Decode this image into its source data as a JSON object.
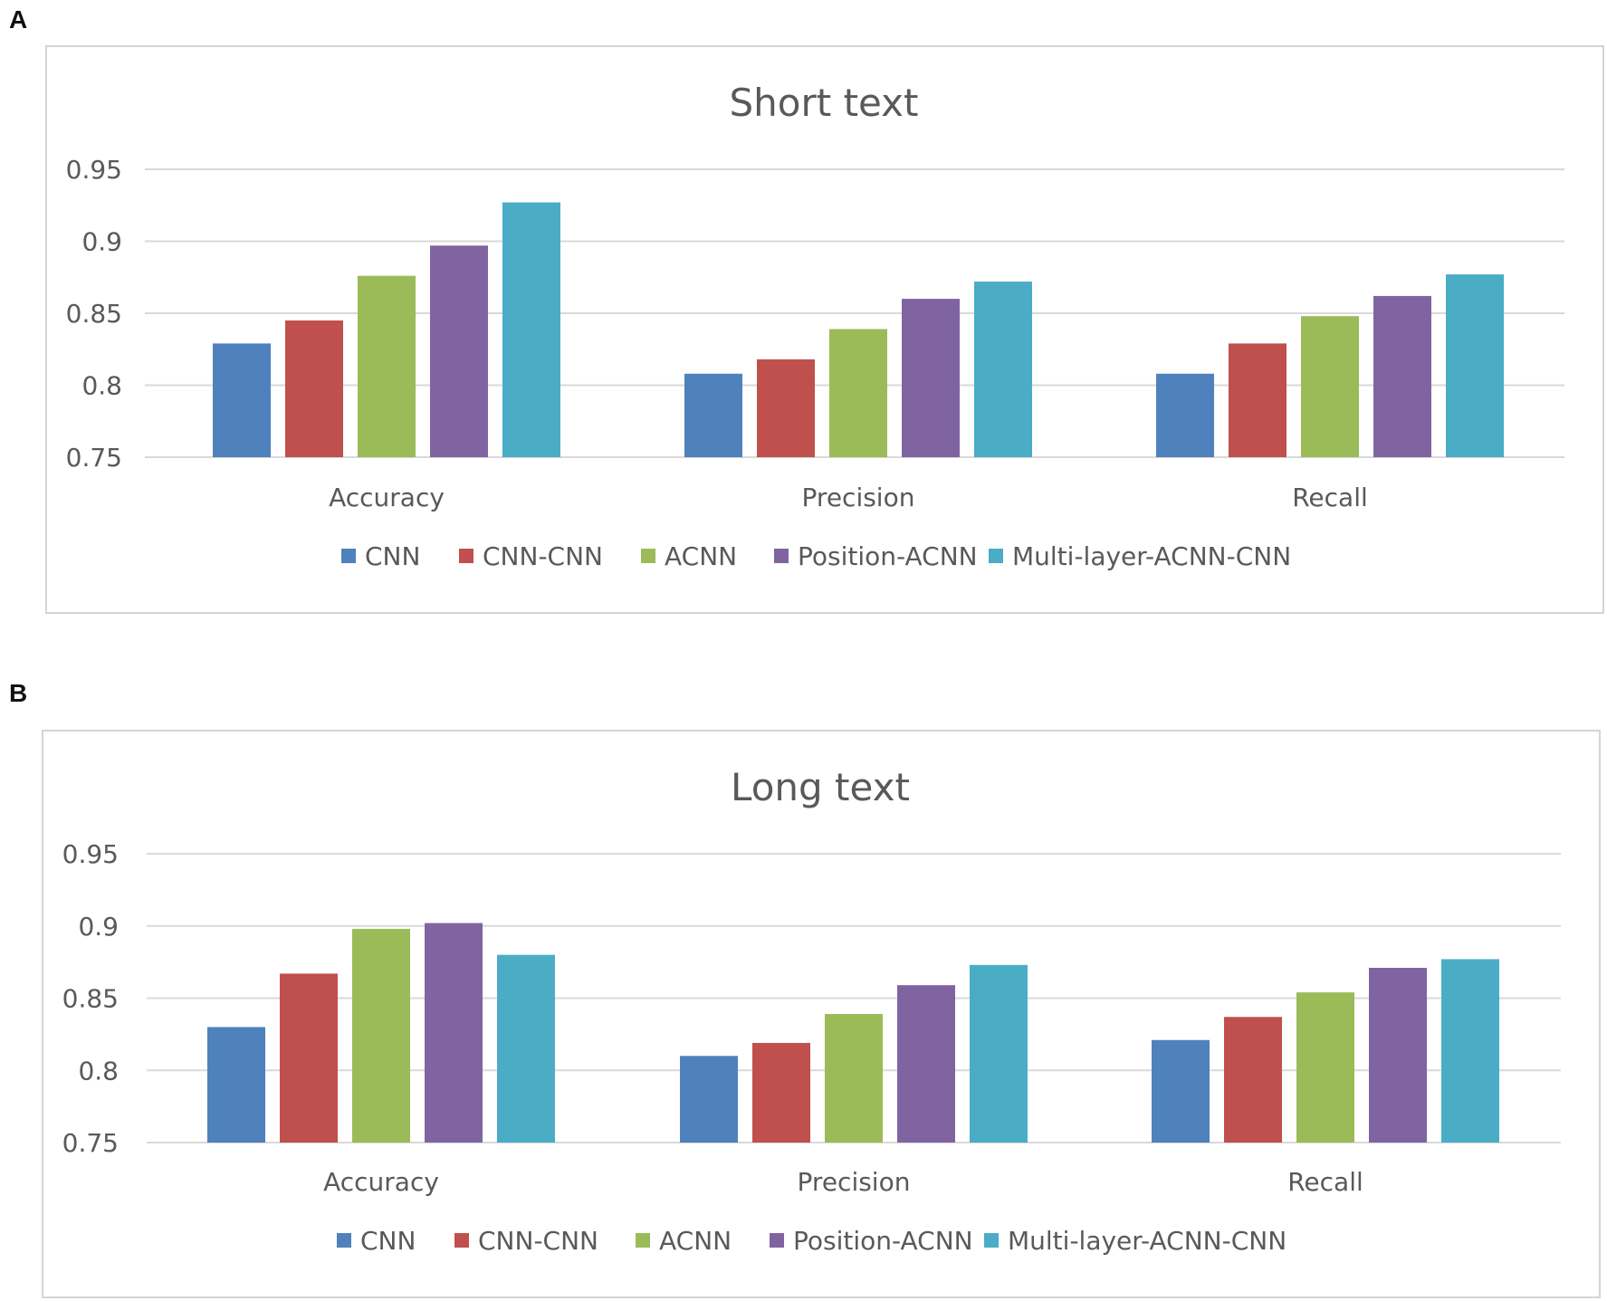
{
  "panels": [
    {
      "label": "A"
    },
    {
      "label": "B"
    }
  ],
  "colors": [
    "#4f81bd",
    "#c0504d",
    "#9bbb59",
    "#8064a2",
    "#4bacc6"
  ],
  "chart_data": [
    {
      "type": "bar",
      "title": "Short text",
      "categories": [
        "Accuracy",
        "Precision",
        "Recall"
      ],
      "ylim": [
        0.75,
        0.95
      ],
      "yticks": [
        "0.75",
        "0.8",
        "0.85",
        "0.9",
        "0.95"
      ],
      "ytick_values": [
        0.75,
        0.8,
        0.85,
        0.9,
        0.95
      ],
      "grid": true,
      "legend_position": "bottom",
      "series": [
        {
          "name": "CNN",
          "values": [
            0.829,
            0.808,
            0.808
          ]
        },
        {
          "name": "CNN-CNN",
          "values": [
            0.845,
            0.818,
            0.829
          ]
        },
        {
          "name": "ACNN",
          "values": [
            0.876,
            0.839,
            0.848
          ]
        },
        {
          "name": "Position-ACNN",
          "values": [
            0.897,
            0.86,
            0.862
          ]
        },
        {
          "name": "Multi-layer-ACNN-CNN",
          "values": [
            0.927,
            0.872,
            0.877
          ]
        }
      ]
    },
    {
      "type": "bar",
      "title": "Long text",
      "categories": [
        "Accuracy",
        "Precision",
        "Recall"
      ],
      "ylim": [
        0.75,
        0.95
      ],
      "yticks": [
        "0.75",
        "0.8",
        "0.85",
        "0.9",
        "0.95"
      ],
      "ytick_values": [
        0.75,
        0.8,
        0.85,
        0.9,
        0.95
      ],
      "grid": true,
      "legend_position": "bottom",
      "series": [
        {
          "name": "CNN",
          "values": [
            0.83,
            0.81,
            0.821
          ]
        },
        {
          "name": "CNN-CNN",
          "values": [
            0.867,
            0.819,
            0.837
          ]
        },
        {
          "name": "ACNN",
          "values": [
            0.898,
            0.839,
            0.854
          ]
        },
        {
          "name": "Position-ACNN",
          "values": [
            0.902,
            0.859,
            0.871
          ]
        },
        {
          "name": "Multi-layer-ACNN-CNN",
          "values": [
            0.88,
            0.873,
            0.877
          ]
        }
      ]
    }
  ]
}
